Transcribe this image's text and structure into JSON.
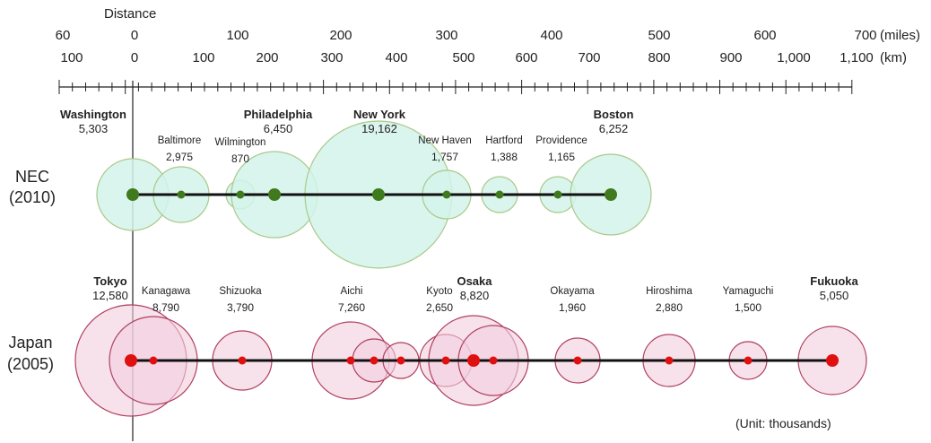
{
  "axis": {
    "title": "Distance",
    "miles_labels": [
      "60",
      "0",
      "100",
      "200",
      "300",
      "400",
      "500",
      "600",
      "700"
    ],
    "miles_unit": "(miles)",
    "km_labels": [
      "100",
      "0",
      "100",
      "200",
      "300",
      "400",
      "500",
      "600",
      "700",
      "800",
      "900",
      "1,000",
      "1,100"
    ],
    "km_unit": "(km)"
  },
  "rows": [
    {
      "label_line1": "NEC",
      "label_line2": "(2010)",
      "cities": [
        {
          "name": "Washington",
          "pop": "5,303",
          "major": true
        },
        {
          "name": "Baltimore",
          "pop": "2,975",
          "major": false
        },
        {
          "name": "Wilmington",
          "pop": "870",
          "major": false
        },
        {
          "name": "Philadelphia",
          "pop": "6,450",
          "major": true
        },
        {
          "name": "New York",
          "pop": "19,162",
          "major": true
        },
        {
          "name": "New Haven",
          "pop": "1,757",
          "major": false
        },
        {
          "name": "Hartford",
          "pop": "1,388",
          "major": false
        },
        {
          "name": "Providence",
          "pop": "1,165",
          "major": false
        },
        {
          "name": "Boston",
          "pop": "6,252",
          "major": true
        }
      ]
    },
    {
      "label_line1": "Japan",
      "label_line2": "(2005)",
      "cities": [
        {
          "name": "Tokyo",
          "pop": "12,580",
          "major": true
        },
        {
          "name": "Kanagawa",
          "pop": "8,790",
          "major": false
        },
        {
          "name": "Shizuoka",
          "pop": "3,790",
          "major": false
        },
        {
          "name": "Aichi",
          "pop": "7,260",
          "major": false
        },
        {
          "name": "",
          "pop": "",
          "major": false
        },
        {
          "name": "",
          "pop": "",
          "major": false
        },
        {
          "name": "Kyoto",
          "pop": "2,650",
          "major": false
        },
        {
          "name": "Osaka",
          "pop": "8,820",
          "major": true
        },
        {
          "name": "",
          "pop": "",
          "major": false
        },
        {
          "name": "Okayama",
          "pop": "1,960",
          "major": false
        },
        {
          "name": "Hiroshima",
          "pop": "2,880",
          "major": false
        },
        {
          "name": "Yamaguchi",
          "pop": "1,500",
          "major": false
        },
        {
          "name": "Fukuoka",
          "pop": "5,050",
          "major": true
        }
      ]
    }
  ],
  "unit_note": "(Unit: thousands)",
  "colors": {
    "nec_fill": "#d4f3ea",
    "nec_stroke": "#a9c98a",
    "nec_dot": "#3f7a1e",
    "jp_fill": "#f1cfe0",
    "jp_stroke": "#b0405e",
    "jp_dot": "#e01010"
  }
}
